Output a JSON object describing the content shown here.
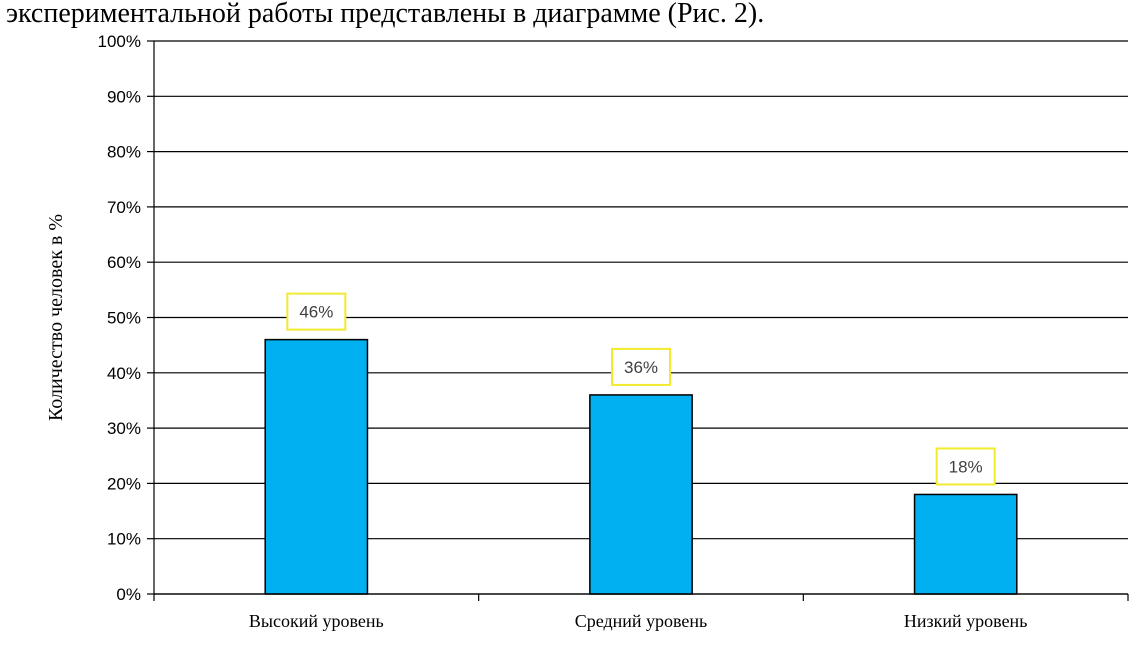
{
  "page": {
    "caption": "экспериментальной работы представлены в диаграмме (Рис. 2)."
  },
  "chart_data": {
    "type": "bar",
    "categories": [
      "Высокий уровень",
      "Средний уровень",
      "Низкий уровень"
    ],
    "values": [
      46,
      36,
      18
    ],
    "data_labels": [
      "46%",
      "36%",
      "18%"
    ],
    "title": "",
    "xlabel": "",
    "ylabel": "Количество человек в %",
    "ylim": [
      0,
      100
    ],
    "yticks": [
      "0%",
      "10%",
      "20%",
      "30%",
      "40%",
      "50%",
      "60%",
      "70%",
      "80%",
      "90%",
      "100%"
    ],
    "grid": "horizontal",
    "legend": "none",
    "colors": {
      "bar": "#00b0f0",
      "bar_border": "#000000",
      "label_border": "#f2ea2c",
      "label_text": "#404040"
    }
  }
}
